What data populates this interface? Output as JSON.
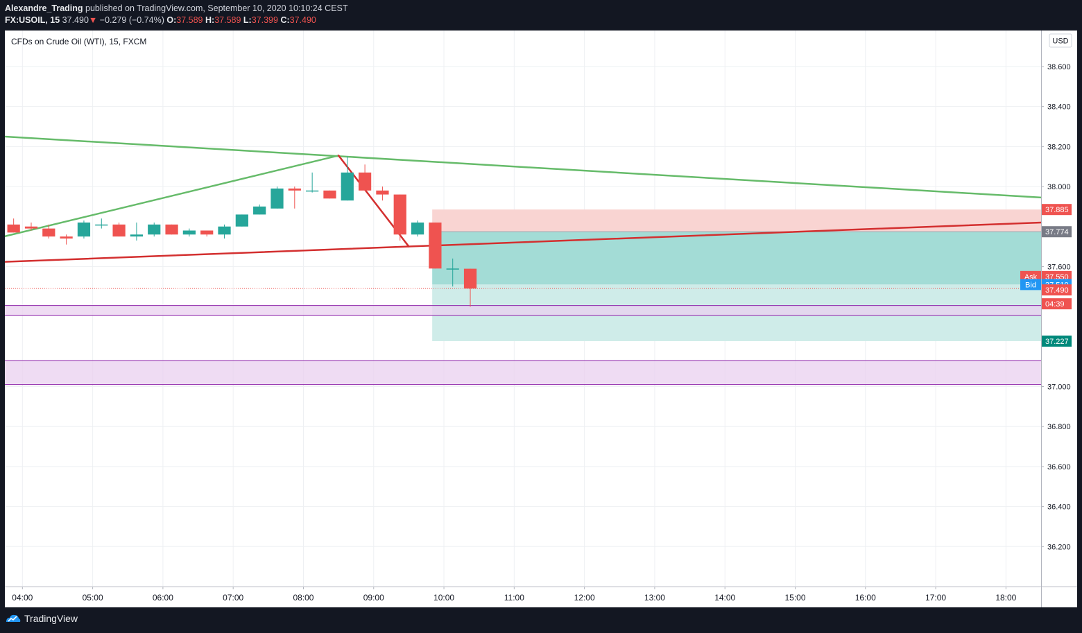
{
  "publish_line": {
    "author": "Alexandre_Trading",
    "text": "published on TradingView.com, September 10, 2020 10:10:24 CEST"
  },
  "symbol_line": {
    "symbol": "FX:USOIL, 15",
    "last": "37.490",
    "arrow": "▼",
    "change": "−0.279 (−0.74%)",
    "o_label": "O:",
    "o_value": "37.589",
    "h_label": "H:",
    "h_value": "37.589",
    "l_label": "L:",
    "l_value": "37.399",
    "c_label": "C:",
    "c_value": "37.490"
  },
  "legend_title": "CFDs on Crude Oil (WTI), 15, FXCM",
  "currency_label": "USD",
  "footer_brand": "TradingView",
  "colors": {
    "up": "#26a69a",
    "down": "#ef5350",
    "green_line": "#66bb6a",
    "red_line": "#d32f2f",
    "stop_zone": "#f9d4d2",
    "target_zone": "#a3dcd6",
    "target_zone_light": "#cfece9",
    "purple_zone": "#ead0ef",
    "purple_border": "#8e24aa",
    "ask": "#ef5350",
    "bid": "#2196f3",
    "grid": "#eef0f3",
    "brand": "#2196f3"
  },
  "chart_data": {
    "type": "candlestick",
    "x_axis_type": "time",
    "x_ticks": [
      "04:00",
      "05:00",
      "06:00",
      "07:00",
      "08:00",
      "09:00",
      "10:00",
      "11:00",
      "12:00",
      "13:00",
      "14:00",
      "15:00",
      "16:00",
      "17:00",
      "18:00"
    ],
    "y_ticks": [
      "38.600",
      "38.400",
      "38.200",
      "38.000",
      "37.600",
      "37.000",
      "36.800",
      "36.600",
      "36.400",
      "36.200"
    ],
    "ylim": [
      36.0,
      38.78
    ],
    "xlim": [
      "03:45",
      "18:30"
    ],
    "candles": [
      {
        "t": "03:45",
        "o": 37.81,
        "h": 37.84,
        "l": 37.77,
        "c": 37.77
      },
      {
        "t": "04:00",
        "o": 37.8,
        "h": 37.82,
        "l": 37.78,
        "c": 37.79
      },
      {
        "t": "04:15",
        "o": 37.79,
        "h": 37.81,
        "l": 37.74,
        "c": 37.75
      },
      {
        "t": "04:30",
        "o": 37.75,
        "h": 37.76,
        "l": 37.71,
        "c": 37.74
      },
      {
        "t": "04:45",
        "o": 37.75,
        "h": 37.83,
        "l": 37.74,
        "c": 37.82
      },
      {
        "t": "05:00",
        "o": 37.81,
        "h": 37.84,
        "l": 37.79,
        "c": 37.81
      },
      {
        "t": "05:15",
        "o": 37.81,
        "h": 37.82,
        "l": 37.75,
        "c": 37.75
      },
      {
        "t": "05:30",
        "o": 37.75,
        "h": 37.82,
        "l": 37.73,
        "c": 37.76
      },
      {
        "t": "05:45",
        "o": 37.76,
        "h": 37.82,
        "l": 37.75,
        "c": 37.81
      },
      {
        "t": "06:00",
        "o": 37.81,
        "h": 37.81,
        "l": 37.76,
        "c": 37.76
      },
      {
        "t": "06:15",
        "o": 37.76,
        "h": 37.79,
        "l": 37.75,
        "c": 37.78
      },
      {
        "t": "06:30",
        "o": 37.78,
        "h": 37.78,
        "l": 37.75,
        "c": 37.76
      },
      {
        "t": "06:45",
        "o": 37.76,
        "h": 37.81,
        "l": 37.74,
        "c": 37.8
      },
      {
        "t": "07:00",
        "o": 37.8,
        "h": 37.86,
        "l": 37.8,
        "c": 37.86
      },
      {
        "t": "07:15",
        "o": 37.86,
        "h": 37.91,
        "l": 37.86,
        "c": 37.9
      },
      {
        "t": "07:30",
        "o": 37.89,
        "h": 38.0,
        "l": 37.89,
        "c": 37.99
      },
      {
        "t": "07:45",
        "o": 37.99,
        "h": 38.0,
        "l": 37.89,
        "c": 37.98
      },
      {
        "t": "08:00",
        "o": 37.98,
        "h": 38.07,
        "l": 37.97,
        "c": 37.98
      },
      {
        "t": "08:15",
        "o": 37.98,
        "h": 37.98,
        "l": 37.94,
        "c": 37.94
      },
      {
        "t": "08:30",
        "o": 37.93,
        "h": 38.15,
        "l": 37.93,
        "c": 38.07
      },
      {
        "t": "08:45",
        "o": 38.07,
        "h": 38.11,
        "l": 37.98,
        "c": 37.98
      },
      {
        "t": "09:00",
        "o": 37.98,
        "h": 38.0,
        "l": 37.93,
        "c": 37.96
      },
      {
        "t": "09:15",
        "o": 37.96,
        "h": 37.96,
        "l": 37.73,
        "c": 37.76
      },
      {
        "t": "09:30",
        "o": 37.76,
        "h": 37.83,
        "l": 37.75,
        "c": 37.82
      },
      {
        "t": "09:45",
        "o": 37.82,
        "h": 37.82,
        "l": 37.59,
        "c": 37.59
      },
      {
        "t": "10:00",
        "o": 37.59,
        "h": 37.64,
        "l": 37.5,
        "c": 37.59
      },
      {
        "t": "10:15",
        "o": 37.589,
        "h": 37.589,
        "l": 37.399,
        "c": 37.49
      }
    ],
    "trendlines": [
      {
        "name": "upper-descending",
        "color": "green",
        "from": [
          "03:30",
          38.255
        ],
        "to": [
          "18:30",
          37.945
        ]
      },
      {
        "name": "lower-ascending",
        "color": "green",
        "from": [
          "03:30",
          37.73
        ],
        "to": [
          "08:30",
          38.155
        ]
      },
      {
        "name": "ascending-support",
        "color": "red",
        "from": [
          "03:30",
          37.62
        ],
        "to": [
          "18:30",
          37.82
        ]
      },
      {
        "name": "drop-path",
        "color": "red",
        "from": [
          "08:30",
          38.155
        ],
        "to": [
          "09:30",
          37.7
        ]
      }
    ],
    "position": {
      "type": "short",
      "start": "09:50",
      "entry": 37.774,
      "stop": 37.885,
      "target": 37.227
    },
    "zones": [
      {
        "low": 37.355,
        "high": 37.405
      },
      {
        "low": 37.01,
        "high": 37.13
      }
    ],
    "price_labels": {
      "stop": "37.885",
      "entry": "37.774",
      "ask_label": "Ask",
      "ask": "37.550",
      "bid_label": "Bid",
      "bid": "37.510",
      "last": "37.490",
      "countdown": "04:39",
      "target": "37.227"
    },
    "last_price": 37.49,
    "bid_price": 37.51,
    "ask_price": 37.55
  }
}
